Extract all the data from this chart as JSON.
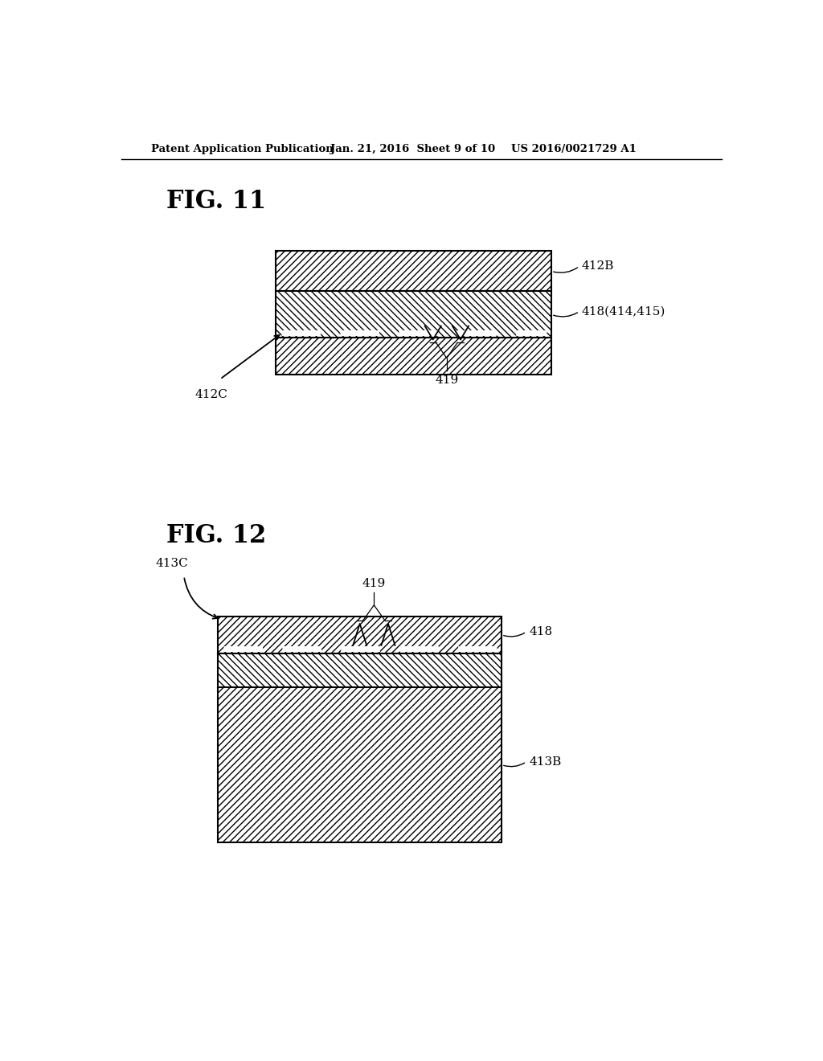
{
  "header_left": "Patent Application Publication",
  "header_center": "Jan. 21, 2016  Sheet 9 of 10",
  "header_right": "US 2016/0021729 A1",
  "fig11_label": "FIG. 11",
  "fig12_label": "FIG. 12",
  "background_color": "#ffffff"
}
